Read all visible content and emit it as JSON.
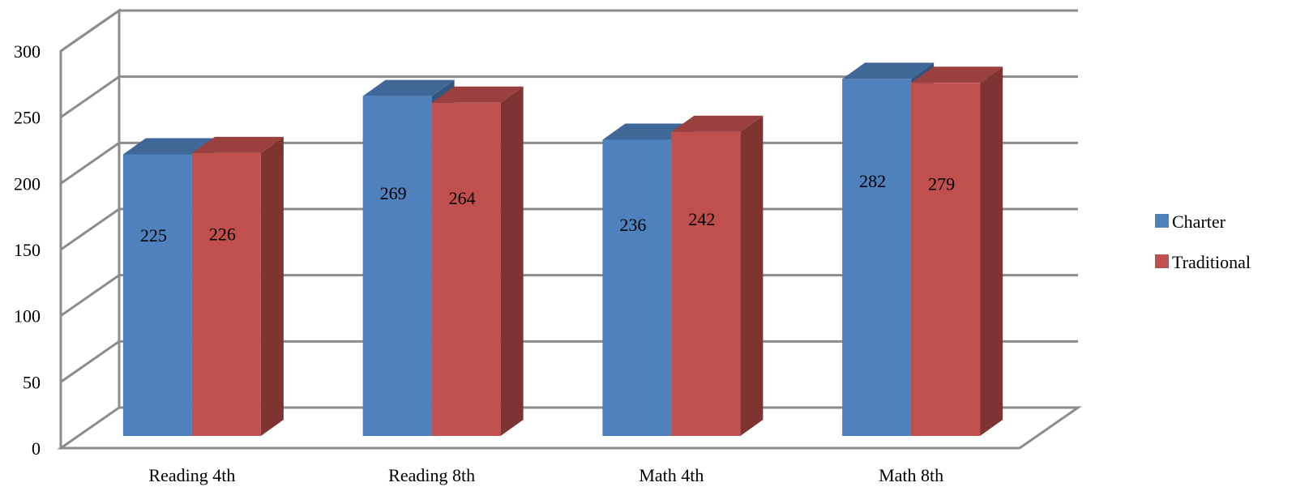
{
  "chart_data": {
    "type": "bar",
    "categories": [
      "Reading 4th",
      "Reading 8th",
      "Math 4th",
      "Math 8th"
    ],
    "series": [
      {
        "name": "Charter",
        "values": [
          225,
          269,
          236,
          282
        ],
        "color": "#4F81BD"
      },
      {
        "name": "Traditional",
        "values": [
          226,
          264,
          242,
          279
        ],
        "color": "#C0504D"
      }
    ],
    "ylim": [
      0,
      300
    ],
    "yticks": [
      "0",
      "50",
      "100",
      "150",
      "200",
      "250",
      "300"
    ],
    "grid": true,
    "legend": "right",
    "style": "3d-clustered-column"
  }
}
